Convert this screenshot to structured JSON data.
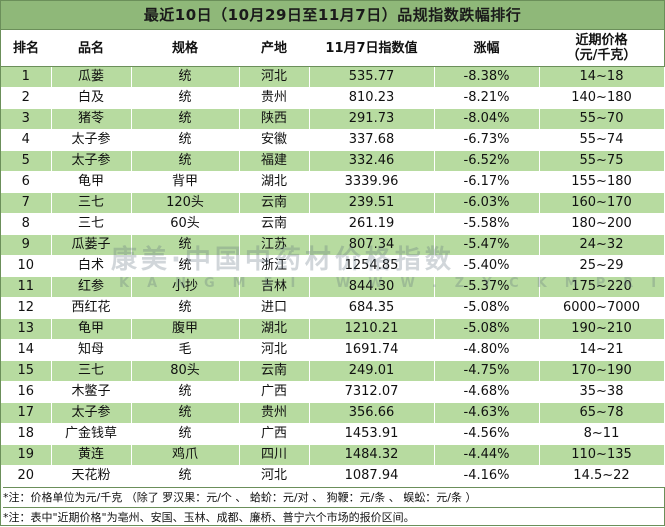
{
  "title": "最近10日（10月29日至11月7日）品规指数跌幅排行",
  "headers": {
    "rank": "排名",
    "name": "品名",
    "spec": "规格",
    "origin": "产地",
    "index": "11月7日指数值",
    "change": "涨幅",
    "price_line1": "近期价格",
    "price_line2": "（元/千克）"
  },
  "rows": [
    {
      "rank": "1",
      "name": "瓜蒌",
      "spec": "统",
      "origin": "河北",
      "index": "535.77",
      "change": "-8.38%",
      "price": "14~18"
    },
    {
      "rank": "2",
      "name": "白及",
      "spec": "统",
      "origin": "贵州",
      "index": "810.23",
      "change": "-8.21%",
      "price": "140~180"
    },
    {
      "rank": "3",
      "name": "猪苓",
      "spec": "统",
      "origin": "陕西",
      "index": "291.73",
      "change": "-8.04%",
      "price": "55~70"
    },
    {
      "rank": "4",
      "name": "太子参",
      "spec": "统",
      "origin": "安徽",
      "index": "337.68",
      "change": "-6.73%",
      "price": "55~74"
    },
    {
      "rank": "5",
      "name": "太子参",
      "spec": "统",
      "origin": "福建",
      "index": "332.46",
      "change": "-6.52%",
      "price": "55~75"
    },
    {
      "rank": "6",
      "name": "龟甲",
      "spec": "背甲",
      "origin": "湖北",
      "index": "3339.96",
      "change": "-6.17%",
      "price": "155~180"
    },
    {
      "rank": "7",
      "name": "三七",
      "spec": "120头",
      "origin": "云南",
      "index": "239.51",
      "change": "-6.03%",
      "price": "160~170"
    },
    {
      "rank": "8",
      "name": "三七",
      "spec": "60头",
      "origin": "云南",
      "index": "261.19",
      "change": "-5.58%",
      "price": "180~200"
    },
    {
      "rank": "9",
      "name": "瓜蒌子",
      "spec": "统",
      "origin": "江苏",
      "index": "807.34",
      "change": "-5.47%",
      "price": "24~32"
    },
    {
      "rank": "10",
      "name": "白术",
      "spec": "统",
      "origin": "浙江",
      "index": "1254.85",
      "change": "-5.40%",
      "price": "25~29"
    },
    {
      "rank": "11",
      "name": "红参",
      "spec": "小抄",
      "origin": "吉林",
      "index": "844.30",
      "change": "-5.37%",
      "price": "175~220"
    },
    {
      "rank": "12",
      "name": "西红花",
      "spec": "统",
      "origin": "进口",
      "index": "684.35",
      "change": "-5.08%",
      "price": "6000~7000"
    },
    {
      "rank": "13",
      "name": "龟甲",
      "spec": "腹甲",
      "origin": "湖北",
      "index": "1210.21",
      "change": "-5.08%",
      "price": "190~210"
    },
    {
      "rank": "14",
      "name": "知母",
      "spec": "毛",
      "origin": "河北",
      "index": "1691.74",
      "change": "-4.80%",
      "price": "14~21"
    },
    {
      "rank": "15",
      "name": "三七",
      "spec": "80头",
      "origin": "云南",
      "index": "249.01",
      "change": "-4.75%",
      "price": "170~190"
    },
    {
      "rank": "16",
      "name": "木鳖子",
      "spec": "统",
      "origin": "广西",
      "index": "7312.07",
      "change": "-4.68%",
      "price": "35~38"
    },
    {
      "rank": "17",
      "name": "太子参",
      "spec": "统",
      "origin": "贵州",
      "index": "356.66",
      "change": "-4.63%",
      "price": "65~78"
    },
    {
      "rank": "18",
      "name": "广金钱草",
      "spec": "统",
      "origin": "广西",
      "index": "1453.91",
      "change": "-4.56%",
      "price": "8~11"
    },
    {
      "rank": "19",
      "name": "黄连",
      "spec": "鸡爪",
      "origin": "四川",
      "index": "1484.32",
      "change": "-4.44%",
      "price": "110~135"
    },
    {
      "rank": "20",
      "name": "天花粉",
      "spec": "统",
      "origin": "河北",
      "index": "1087.94",
      "change": "-4.16%",
      "price": "14.5~22"
    }
  ],
  "notes": [
    "*注：价格单位为元/千克  （除了   罗汉果：元/个 、    蛤蚧：元/对 、   狗鞭：元/条 、   蜈蚣：元/条 ）",
    "*注：表中\"近期价格\"为亳州、安国、玉林、成都、廉桥、普宁六个市场的报价区间。"
  ],
  "watermark": {
    "main": "康美·中国中药材价格指数",
    "sub": "KANGMEI WWW.ZYCKMPRICE.COM"
  }
}
